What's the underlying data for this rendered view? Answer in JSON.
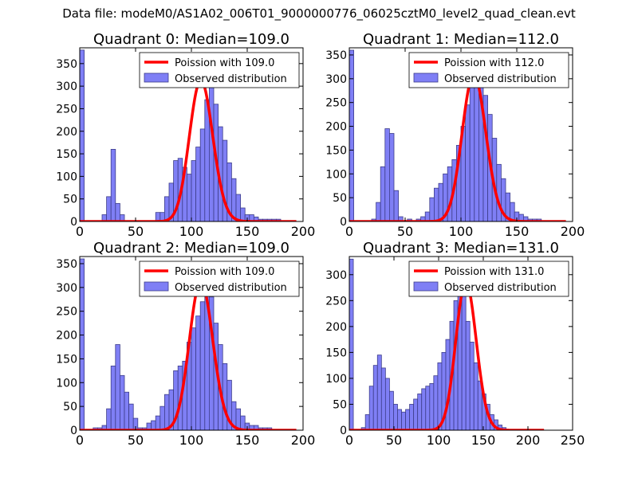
{
  "suptitle": "Data file: modeM0/AS1A02_006T01_9000000776_06025cztM0_level2_quad_clean.evt",
  "colors": {
    "bars": "#7f7ff5",
    "bar_edge": "#3d3d8a",
    "poisson": "#ff0000"
  },
  "chart_data": [
    {
      "type": "bar",
      "title": "Quadrant 0: Median=109.0",
      "xlim": [
        0,
        200
      ],
      "ylim": [
        0,
        385
      ],
      "xticks": [
        0,
        50,
        100,
        150,
        200
      ],
      "yticks": [
        0,
        50,
        100,
        150,
        200,
        250,
        300,
        350
      ],
      "bin_width": 4,
      "bin_edges_start": 0,
      "values": [
        380,
        0,
        0,
        0,
        0,
        15,
        55,
        160,
        40,
        15,
        0,
        0,
        0,
        0,
        0,
        0,
        0,
        20,
        20,
        55,
        85,
        135,
        140,
        120,
        105,
        135,
        165,
        205,
        270,
        300,
        260,
        210,
        180,
        130,
        95,
        60,
        30,
        15,
        15,
        10,
        5,
        5,
        5,
        5,
        5,
        0,
        0,
        0,
        0,
        0
      ],
      "series": [
        {
          "name": "Poission with 109.0",
          "type": "line",
          "poisson_mean": 109.0,
          "scale": 4
        },
        {
          "name": "Observed distribution",
          "type": "bar"
        }
      ],
      "legend": [
        "Poission with 109.0",
        "Observed distribution"
      ],
      "legend_loc": "upper right",
      "grid": false
    },
    {
      "type": "bar",
      "title": "Quadrant 1: Median=112.0",
      "xlim": [
        0,
        200
      ],
      "ylim": [
        0,
        365
      ],
      "xticks": [
        0,
        50,
        100,
        150,
        200
      ],
      "yticks": [
        0,
        50,
        100,
        150,
        200,
        250,
        300,
        350
      ],
      "bin_width": 4,
      "bin_edges_start": 0,
      "values": [
        360,
        0,
        0,
        0,
        0,
        5,
        40,
        115,
        195,
        185,
        65,
        10,
        0,
        5,
        0,
        5,
        10,
        20,
        50,
        70,
        80,
        100,
        115,
        130,
        160,
        200,
        245,
        285,
        330,
        295,
        265,
        225,
        175,
        120,
        90,
        60,
        40,
        20,
        15,
        10,
        5,
        5,
        5,
        0,
        0,
        0,
        0,
        0,
        0,
        0
      ],
      "series": [
        {
          "name": "Poission with 112.0",
          "type": "line",
          "poisson_mean": 112.0,
          "scale": 4
        },
        {
          "name": "Observed distribution",
          "type": "bar"
        }
      ],
      "legend": [
        "Poission with 112.0",
        "Observed distribution"
      ],
      "legend_loc": "upper right",
      "grid": false
    },
    {
      "type": "bar",
      "title": "Quadrant 2: Median=109.0",
      "xlim": [
        0,
        200
      ],
      "ylim": [
        0,
        365
      ],
      "xticks": [
        0,
        50,
        100,
        150,
        200
      ],
      "yticks": [
        0,
        50,
        100,
        150,
        200,
        250,
        300,
        350
      ],
      "bin_width": 4,
      "bin_edges_start": 0,
      "values": [
        360,
        0,
        0,
        5,
        5,
        10,
        45,
        135,
        180,
        115,
        80,
        55,
        25,
        5,
        5,
        15,
        20,
        30,
        50,
        75,
        85,
        125,
        135,
        145,
        185,
        215,
        240,
        270,
        300,
        280,
        225,
        180,
        140,
        105,
        60,
        45,
        30,
        15,
        10,
        10,
        5,
        5,
        5,
        0,
        0,
        0,
        0,
        0,
        0,
        0
      ],
      "series": [
        {
          "name": "Poission with 109.0",
          "type": "line",
          "poisson_mean": 109.0,
          "scale": 4
        },
        {
          "name": "Observed distribution",
          "type": "bar"
        }
      ],
      "legend": [
        "Poission with 109.0",
        "Observed distribution"
      ],
      "legend_loc": "upper right",
      "grid": false
    },
    {
      "type": "bar",
      "title": "Quadrant 3: Median=131.0",
      "xlim": [
        0,
        250
      ],
      "ylim": [
        0,
        335
      ],
      "xticks": [
        0,
        50,
        100,
        150,
        200,
        250
      ],
      "yticks": [
        0,
        50,
        100,
        150,
        200,
        250,
        300
      ],
      "bin_width": 4.5,
      "bin_edges_start": 0,
      "values": [
        330,
        0,
        0,
        5,
        30,
        85,
        125,
        145,
        120,
        100,
        75,
        50,
        40,
        35,
        40,
        50,
        60,
        70,
        80,
        85,
        90,
        105,
        130,
        150,
        175,
        210,
        250,
        300,
        290,
        210,
        170,
        130,
        95,
        70,
        50,
        30,
        20,
        10,
        5,
        0,
        0,
        0,
        0,
        0,
        0,
        0,
        0,
        0,
        0,
        0
      ],
      "series": [
        {
          "name": "Poission with 131.0",
          "type": "line",
          "poisson_mean": 131.0,
          "scale": 4.5
        },
        {
          "name": "Observed distribution",
          "type": "bar"
        }
      ],
      "legend": [
        "Poission with 131.0",
        "Observed distribution"
      ],
      "legend_loc": "upper right",
      "grid": false
    }
  ]
}
